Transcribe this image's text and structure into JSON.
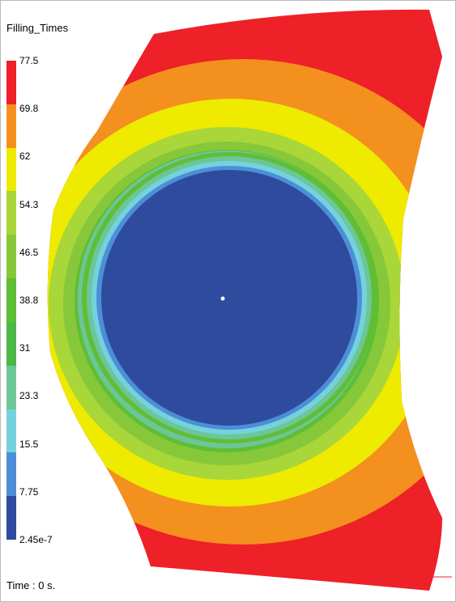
{
  "plot": {
    "title": "Filling_Times",
    "time_text": "Time : 0 s."
  },
  "legend": {
    "labels": [
      "77.5",
      "69.8",
      "62",
      "54.3",
      "46.5",
      "38.8",
      "31",
      "23.3",
      "15.5",
      "7.75",
      "2.45e-7"
    ],
    "colors": [
      "#ee2028",
      "#f4901e",
      "#eeea00",
      "#a9d638",
      "#86c83a",
      "#5fbe36",
      "#4cb848",
      "#6dc698",
      "#74d2df",
      "#4d8fd6",
      "#2e4b9e"
    ]
  }
}
